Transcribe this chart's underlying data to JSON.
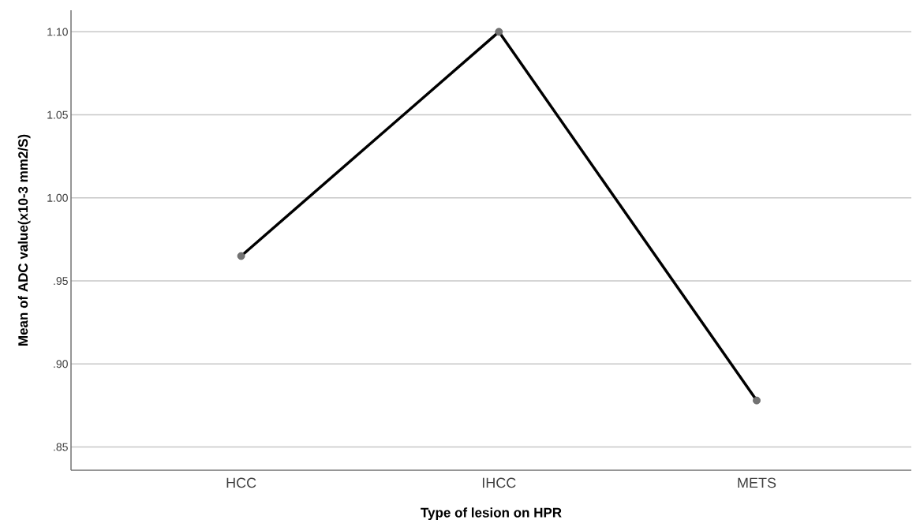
{
  "chart_data": {
    "type": "line",
    "xlabel": "Type of lesion on HPR",
    "ylabel": "Mean of ADC value(x10-3 mm2/S)",
    "categories": [
      "HCC",
      "IHCC",
      "METS"
    ],
    "series": [
      {
        "color": "#000000",
        "values": [
          0.965,
          1.1,
          0.878
        ]
      }
    ],
    "ylim": [
      0.836,
      1.113
    ],
    "yticks": [
      {
        "value": 0.85,
        "label": ".85"
      },
      {
        "value": 0.9,
        "label": ".90"
      },
      {
        "value": 0.95,
        "label": ".95"
      },
      {
        "value": 1.0,
        "label": "1.00"
      },
      {
        "value": 1.05,
        "label": "1.05"
      },
      {
        "value": 1.1,
        "label": "1.10"
      }
    ],
    "grid": "y",
    "marker": "circle",
    "line_style": "solid"
  }
}
